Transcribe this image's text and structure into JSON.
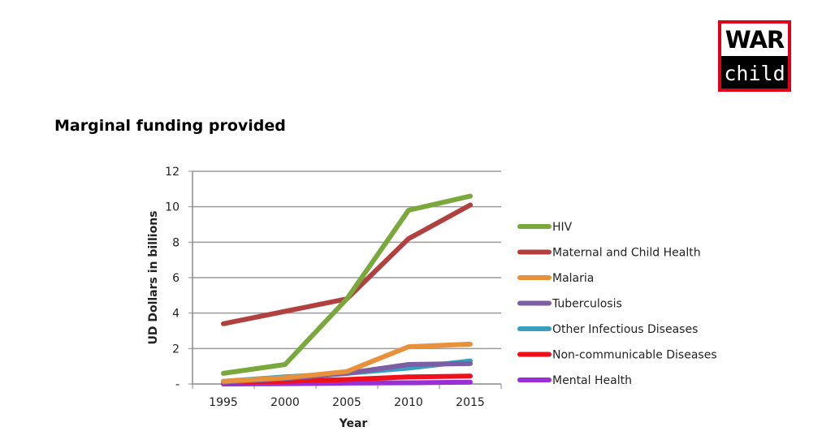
{
  "logo": {
    "line1": "WAR",
    "line2": "child"
  },
  "heading": "Marginal funding provided",
  "chart_data": {
    "type": "line",
    "title": "",
    "xlabel": "Year",
    "ylabel": "UD Dollars in billions",
    "x": [
      1995,
      2000,
      2005,
      2010,
      2015
    ],
    "ylim": [
      0,
      12
    ],
    "yticks": [
      {
        "value": 0,
        "label": "-"
      },
      {
        "value": 2,
        "label": "2"
      },
      {
        "value": 4,
        "label": "4"
      },
      {
        "value": 6,
        "label": "6"
      },
      {
        "value": 8,
        "label": "8"
      },
      {
        "value": 10,
        "label": "10"
      },
      {
        "value": 12,
        "label": "12"
      }
    ],
    "grid": "horizontal",
    "legend": "right",
    "series": [
      {
        "name": "HIV",
        "color": "#7aa83c",
        "values": [
          0.6,
          1.1,
          4.8,
          9.8,
          10.6
        ]
      },
      {
        "name": "Maternal and Child Health",
        "color": "#b0413e",
        "values": [
          3.4,
          4.1,
          4.8,
          8.2,
          10.1
        ]
      },
      {
        "name": "Malaria",
        "color": "#e8913a",
        "values": [
          0.15,
          0.35,
          0.7,
          2.1,
          2.25
        ]
      },
      {
        "name": "Tuberculosis",
        "color": "#7b5ea3",
        "values": [
          0.1,
          0.3,
          0.6,
          1.1,
          1.15
        ]
      },
      {
        "name": "Other Infectious Diseases",
        "color": "#3a9fbf",
        "values": [
          0.15,
          0.4,
          0.6,
          0.9,
          1.3
        ]
      },
      {
        "name": "Non-communicable Diseases",
        "color": "#f0101a",
        "values": [
          0.1,
          0.15,
          0.25,
          0.4,
          0.45
        ]
      },
      {
        "name": "Mental Health",
        "color": "#9b2fd6",
        "values": [
          0.0,
          0.02,
          0.05,
          0.07,
          0.1
        ]
      }
    ]
  }
}
